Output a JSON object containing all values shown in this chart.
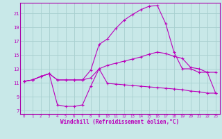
{
  "background_color": "#c8e8e8",
  "grid_color": "#a8d0d0",
  "line_color": "#bb00bb",
  "spine_color": "#aa00aa",
  "xlim": [
    -0.5,
    23.5
  ],
  "ylim": [
    6.5,
    22.5
  ],
  "yticks": [
    7,
    9,
    11,
    13,
    15,
    17,
    19,
    21
  ],
  "xticks": [
    0,
    1,
    2,
    3,
    4,
    5,
    6,
    7,
    8,
    9,
    10,
    11,
    12,
    13,
    14,
    15,
    16,
    17,
    18,
    19,
    20,
    21,
    22,
    23
  ],
  "xlabel": "Windchill (Refroidissement éolien,°C)",
  "series1_x": [
    0,
    1,
    2,
    3,
    4,
    5,
    6,
    7,
    8,
    9,
    10,
    11,
    12,
    13,
    14,
    15,
    16,
    17,
    18,
    19,
    20,
    21,
    22,
    23
  ],
  "series1_y": [
    11.2,
    11.4,
    11.9,
    12.3,
    11.4,
    11.4,
    11.4,
    11.4,
    11.7,
    13.0,
    13.5,
    13.8,
    14.1,
    14.4,
    14.7,
    15.1,
    15.4,
    15.2,
    14.8,
    14.5,
    13.2,
    13.0,
    12.5,
    12.5
  ],
  "series2_x": [
    0,
    1,
    2,
    3,
    4,
    5,
    6,
    7,
    8,
    9,
    10,
    11,
    12,
    13,
    14,
    15,
    16,
    17,
    18,
    19,
    20,
    21,
    22,
    23
  ],
  "series2_y": [
    11.2,
    11.4,
    11.9,
    12.3,
    7.8,
    7.6,
    7.6,
    7.8,
    10.5,
    13.0,
    10.9,
    10.8,
    10.7,
    10.6,
    10.5,
    10.4,
    10.3,
    10.2,
    10.1,
    10.0,
    9.8,
    9.7,
    9.5,
    9.5
  ],
  "series3_x": [
    0,
    1,
    2,
    3,
    4,
    5,
    6,
    7,
    8,
    9,
    10,
    11,
    12,
    13,
    14,
    15,
    16,
    17,
    18,
    19,
    20,
    21,
    22,
    23
  ],
  "series3_y": [
    11.2,
    11.4,
    11.9,
    12.3,
    11.4,
    11.4,
    11.4,
    11.4,
    12.8,
    16.5,
    17.3,
    18.8,
    20.0,
    20.8,
    21.5,
    22.0,
    22.1,
    19.5,
    15.4,
    13.0,
    13.0,
    12.5,
    12.5,
    9.5
  ],
  "figsize": [
    3.2,
    2.0
  ],
  "dpi": 100
}
